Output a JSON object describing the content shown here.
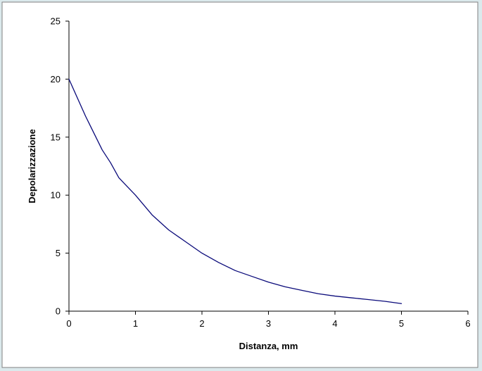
{
  "chart_data": {
    "type": "line",
    "title": "",
    "xlabel": "Distanza, mm",
    "ylabel": "Depolarizzazione",
    "xlim": [
      0,
      6
    ],
    "ylim": [
      0,
      25
    ],
    "x_ticks": [
      "0",
      "1",
      "2",
      "3",
      "4",
      "5",
      "6"
    ],
    "y_ticks": [
      "0",
      "5",
      "10",
      "15",
      "20",
      "25"
    ],
    "grid": false,
    "legend": "none",
    "series": [
      {
        "color": "#0a0a7a",
        "x": [
          0,
          0.25,
          0.5,
          0.625,
          0.75,
          1.0,
          1.25,
          1.5,
          1.75,
          2.0,
          2.25,
          2.5,
          2.75,
          3.0,
          3.25,
          3.5,
          3.75,
          4.0,
          4.25,
          4.5,
          4.75,
          5.0
        ],
        "y": [
          20.0,
          16.8,
          13.9,
          12.8,
          11.5,
          10.0,
          8.3,
          7.0,
          6.0,
          5.0,
          4.2,
          3.5,
          3.0,
          2.5,
          2.1,
          1.8,
          1.5,
          1.3,
          1.15,
          1.0,
          0.85,
          0.65
        ]
      }
    ],
    "colors": {
      "plot_background": "#ffffff",
      "outer_background": "#dbe9ec",
      "axis": "#000000",
      "frame": "#808080"
    }
  }
}
